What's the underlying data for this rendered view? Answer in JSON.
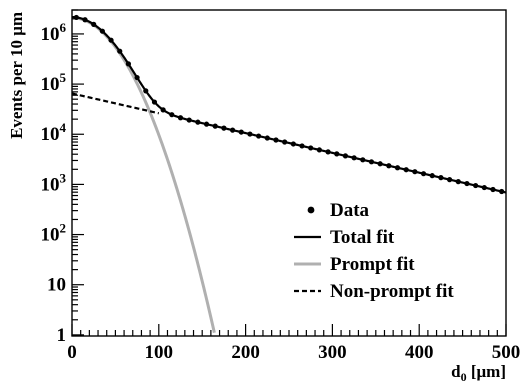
{
  "chart_data": {
    "type": "scatter",
    "title": "",
    "xlabel": {
      "main": "d",
      "sub": "0",
      "unit": " [μm]"
    },
    "ylabel": "Events per 10  μm",
    "xlim": [
      0,
      500
    ],
    "ylim": [
      0.95,
      3000000
    ],
    "yscale": "log",
    "grid": false,
    "legend_position": "bottom-right",
    "x_ticks": [
      0,
      100,
      200,
      300,
      400,
      500
    ],
    "y_ticks": [
      {
        "value": 1,
        "label": "1",
        "exp": ""
      },
      {
        "value": 10,
        "label": "10",
        "exp": ""
      },
      {
        "value": 100,
        "label": "10",
        "exp": "2"
      },
      {
        "value": 1000,
        "label": "10",
        "exp": "3"
      },
      {
        "value": 10000,
        "label": "10",
        "exp": "4"
      },
      {
        "value": 100000,
        "label": "10",
        "exp": "5"
      },
      {
        "value": 1000000,
        "label": "10",
        "exp": "6"
      }
    ],
    "model": {
      "prompt_amplitude": 2100000,
      "prompt_sigma": 30.5,
      "nonprompt_amplitude": 65000,
      "nonprompt_decay_length": 110
    },
    "series": [
      {
        "name": "Data",
        "style": "points",
        "color": "#000000",
        "x_start": 5,
        "x_step": 10,
        "x_end": 495
      },
      {
        "name": "Total fit",
        "style": "solid",
        "color": "#000000"
      },
      {
        "name": "Prompt fit",
        "style": "solid",
        "color": "#b0b0b0"
      },
      {
        "name": "Non-prompt fit",
        "style": "dashed",
        "color": "#000000"
      }
    ]
  }
}
